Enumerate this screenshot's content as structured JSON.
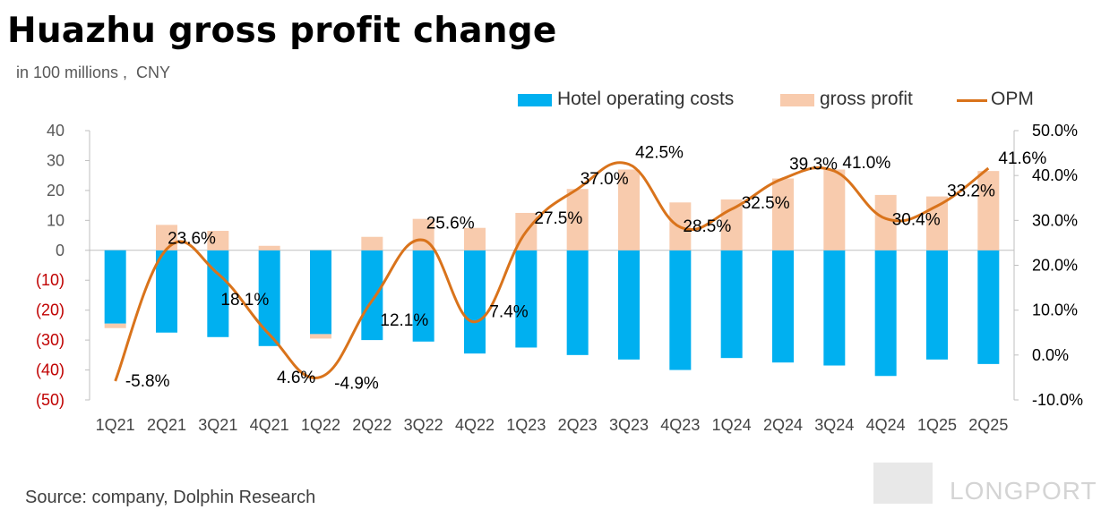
{
  "title": "Huazhu gross profit change",
  "subtitle": "in 100 millions ,  CNY",
  "source": "Source: company, Dolphin Research",
  "watermark": "LONGPORT",
  "colors": {
    "costs": "#00B0F0",
    "gross_profit": "#F8CBAD",
    "opm": "#D9731B",
    "negative_tick": "#C00000",
    "axis": "#BFBFBF"
  },
  "chart_data": {
    "type": "bar",
    "categories": [
      "1Q21",
      "2Q21",
      "3Q21",
      "4Q21",
      "1Q22",
      "2Q22",
      "3Q22",
      "4Q22",
      "1Q23",
      "2Q23",
      "3Q23",
      "4Q23",
      "1Q24",
      "2Q24",
      "3Q24",
      "4Q24",
      "1Q25",
      "2Q25"
    ],
    "series": [
      {
        "name": "Hotel operating costs",
        "type": "bar",
        "axis": "left",
        "values": [
          -24.5,
          -27.5,
          -29,
          -32,
          -28,
          -30,
          -30.5,
          -34.5,
          -32.5,
          -35,
          -36.5,
          -40,
          -36,
          -37.5,
          -38.5,
          -42,
          -36.5,
          -38
        ]
      },
      {
        "name": "gross profit",
        "type": "bar",
        "axis": "left",
        "values": [
          -1.5,
          8.5,
          6.5,
          1.5,
          -1.5,
          4.5,
          10.5,
          7.5,
          12.5,
          20.5,
          27,
          16,
          17,
          24,
          27,
          18.5,
          18,
          26.5
        ]
      },
      {
        "name": "OPM",
        "type": "line",
        "axis": "right",
        "values": [
          -5.8,
          23.6,
          18.1,
          4.6,
          -4.9,
          12.1,
          25.6,
          7.4,
          27.5,
          37.0,
          42.5,
          28.5,
          32.5,
          39.3,
          41.0,
          30.4,
          33.2,
          41.6
        ],
        "labels": [
          "-5.8%",
          "23.6%",
          "18.1%",
          "4.6%",
          "-4.9%",
          "12.1%",
          "25.6%",
          "7.4%",
          "27.5%",
          "37.0%",
          "42.5%",
          "28.5%",
          "32.5%",
          "39.3%",
          "41.0%",
          "30.4%",
          "33.2%",
          "41.6%"
        ]
      }
    ],
    "ylim_left": [
      -50,
      40
    ],
    "yticks_left": [
      "40",
      "30",
      "20",
      "10",
      "0",
      "(10)",
      "(20)",
      "(30)",
      "(40)",
      "(50)"
    ],
    "ylim_right": [
      -10,
      50
    ],
    "yticks_right": [
      "50.0%",
      "40.0%",
      "30.0%",
      "20.0%",
      "10.0%",
      "0.0%",
      "-10.0%"
    ],
    "legend_position": "top",
    "grid": false
  }
}
